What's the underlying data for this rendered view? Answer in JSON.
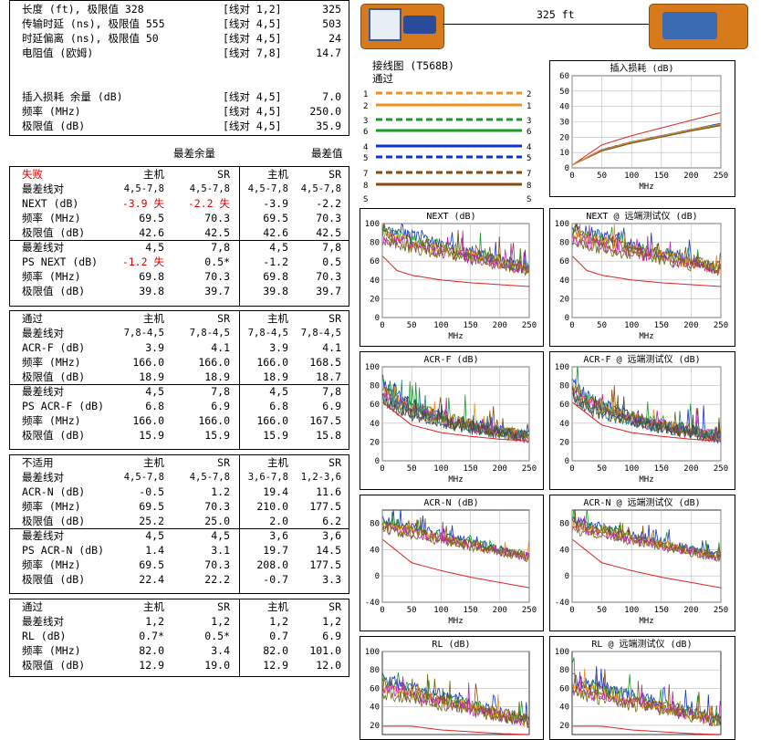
{
  "summary": {
    "rows": [
      {
        "label": "长度 (ft), 极限值 328",
        "pair": "[线对 1,2]",
        "value": "325"
      },
      {
        "label": "传输时延 (ns), 极限值 555",
        "pair": "[线对 4,5]",
        "value": "503"
      },
      {
        "label": "时延偏离 (ns), 极限值 50",
        "pair": "[线对 4,5]",
        "value": "24"
      },
      {
        "label": "电阻值 (欧姆)",
        "pair": "[线对 7,8]",
        "value": "14.7"
      },
      {
        "label": "插入损耗 余量 (dB)",
        "pair": "[线对 4,5]",
        "value": "7.0"
      },
      {
        "label": "频率 (MHz)",
        "pair": "[线对 4,5]",
        "value": "250.0"
      },
      {
        "label": "极限值 (dB)",
        "pair": "[线对 4,5]",
        "value": "35.9"
      }
    ]
  },
  "headers": {
    "worst_margin": "最差余量",
    "worst_value": "最差值"
  },
  "sections": [
    {
      "status": "失败",
      "status_color": "#e00000",
      "cols": [
        "主机",
        "SR",
        "主机",
        "SR"
      ],
      "groups": [
        {
          "rows": [
            {
              "label": "最差线对",
              "vals": [
                "4,5-7,8",
                "4,5-7,8",
                "4,5-7,8",
                "4,5-7,8"
              ],
              "small": true
            },
            {
              "label": "NEXT (dB)",
              "vals": [
                "-3.9 失",
                "-2.2 失",
                "-3.9",
                "-2.2"
              ],
              "red": [
                true,
                true,
                false,
                false
              ]
            },
            {
              "label": "频率 (MHz)",
              "vals": [
                "69.5",
                "70.3",
                "69.5",
                "70.3"
              ]
            },
            {
              "label": "极限值 (dB)",
              "vals": [
                "42.6",
                "42.5",
                "42.6",
                "42.5"
              ]
            }
          ]
        },
        {
          "rows": [
            {
              "label": "最差线对",
              "vals": [
                "4,5",
                "7,8",
                "4,5",
                "7,8"
              ]
            },
            {
              "label": "PS NEXT (dB)",
              "vals": [
                "-1.2 失",
                "0.5*",
                "-1.2",
                "0.5"
              ],
              "red": [
                true,
                false,
                false,
                false
              ]
            },
            {
              "label": "频率 (MHz)",
              "vals": [
                "69.8",
                "70.3",
                "69.8",
                "70.3"
              ]
            },
            {
              "label": "极限值 (dB)",
              "vals": [
                "39.8",
                "39.7",
                "39.8",
                "39.7"
              ]
            }
          ]
        }
      ]
    },
    {
      "status": "通过",
      "status_color": "#000000",
      "cols": [
        "主机",
        "SR",
        "主机",
        "SR"
      ],
      "groups": [
        {
          "rows": [
            {
              "label": "最差线对",
              "vals": [
                "7,8-4,5",
                "7,8-4,5",
                "7,8-4,5",
                "7,8-4,5"
              ],
              "small": true
            },
            {
              "label": "ACR-F (dB)",
              "vals": [
                "3.9",
                "4.1",
                "3.9",
                "4.1"
              ]
            },
            {
              "label": "频率 (MHz)",
              "vals": [
                "166.0",
                "166.0",
                "166.0",
                "168.5"
              ]
            },
            {
              "label": "极限值 (dB)",
              "vals": [
                "18.9",
                "18.9",
                "18.9",
                "18.7"
              ]
            }
          ]
        },
        {
          "rows": [
            {
              "label": "最差线对",
              "vals": [
                "4,5",
                "7,8",
                "4,5",
                "7,8"
              ]
            },
            {
              "label": "PS ACR-F (dB)",
              "vals": [
                "6.8",
                "6.9",
                "6.8",
                "6.9"
              ]
            },
            {
              "label": "频率 (MHz)",
              "vals": [
                "166.0",
                "166.0",
                "166.0",
                "167.5"
              ]
            },
            {
              "label": "极限值 (dB)",
              "vals": [
                "15.9",
                "15.9",
                "15.9",
                "15.8"
              ]
            }
          ]
        }
      ]
    },
    {
      "status": "不适用",
      "status_color": "#000000",
      "cols": [
        "主机",
        "SR",
        "主机",
        "SR"
      ],
      "groups": [
        {
          "rows": [
            {
              "label": "最差线对",
              "vals": [
                "4,5-7,8",
                "4,5-7,8",
                "3,6-7,8",
                "1,2-3,6"
              ],
              "small": true
            },
            {
              "label": "ACR-N (dB)",
              "vals": [
                "-0.5",
                "1.2",
                "19.4",
                "11.6"
              ]
            },
            {
              "label": "频率 (MHz)",
              "vals": [
                "69.5",
                "70.3",
                "210.0",
                "177.5"
              ]
            },
            {
              "label": "极限值 (dB)",
              "vals": [
                "25.2",
                "25.0",
                "2.0",
                "6.2"
              ]
            }
          ]
        },
        {
          "rows": [
            {
              "label": "最差线对",
              "vals": [
                "4,5",
                "4,5",
                "3,6",
                "3,6"
              ]
            },
            {
              "label": "PS ACR-N (dB)",
              "vals": [
                "1.4",
                "3.1",
                "19.7",
                "14.5"
              ]
            },
            {
              "label": "频率 (MHz)",
              "vals": [
                "69.5",
                "70.3",
                "208.0",
                "177.5"
              ]
            },
            {
              "label": "极限值 (dB)",
              "vals": [
                "22.4",
                "22.2",
                "-0.7",
                "3.3"
              ]
            }
          ]
        }
      ]
    },
    {
      "status": "通过",
      "status_color": "#000000",
      "cols": [
        "主机",
        "SR",
        "主机",
        "SR"
      ],
      "groups": [
        {
          "rows": [
            {
              "label": "最差线对",
              "vals": [
                "1,2",
                "1,2",
                "1,2",
                "1,2"
              ]
            },
            {
              "label": "RL (dB)",
              "vals": [
                "0.7*",
                "0.5*",
                "0.7",
                "6.9"
              ]
            },
            {
              "label": "频率 (MHz)",
              "vals": [
                "82.0",
                "3.4",
                "82.0",
                "101.0"
              ]
            },
            {
              "label": "极限值 (dB)",
              "vals": [
                "12.9",
                "19.0",
                "12.9",
                "12.0"
              ]
            }
          ]
        }
      ]
    }
  ],
  "cable": {
    "length_label": "325 ft"
  },
  "wiremap": {
    "title": "接线图 (T568B)",
    "status": "通过",
    "pairs": [
      {
        "left": "1",
        "right": "2",
        "color": "#f0901e",
        "dashed": true
      },
      {
        "left": "2",
        "right": "1",
        "color": "#f0901e",
        "dashed": false
      },
      {
        "left": "3",
        "right": "3",
        "color": "#1a9a2a",
        "dashed": true
      },
      {
        "left": "6",
        "right": "6",
        "color": "#1a9a2a",
        "dashed": false
      },
      {
        "left": "4",
        "right": "4",
        "color": "#1030d8",
        "dashed": false
      },
      {
        "left": "5",
        "right": "5",
        "color": "#1030d8",
        "dashed": true
      },
      {
        "left": "7",
        "right": "7",
        "color": "#8a4a10",
        "dashed": true
      },
      {
        "left": "8",
        "right": "8",
        "color": "#8a4a10",
        "dashed": false
      }
    ],
    "shield_left": "S",
    "shield_right": "S"
  },
  "charts": [
    {
      "id": "il",
      "title": "插入损耗 (dB)",
      "xlabel": "MHz",
      "yticks": [
        "60",
        "50",
        "40",
        "30",
        "20",
        "10",
        "0"
      ],
      "ylim": [
        0,
        60
      ],
      "xticks": [
        "0",
        "50",
        "100",
        "150",
        "200",
        "250"
      ],
      "xlim": [
        0,
        250
      ],
      "kind": "il"
    },
    {
      "id": "next",
      "title": "NEXT (dB)",
      "xlabel": "MHz",
      "yticks": [
        "100",
        "80",
        "60",
        "40",
        "20",
        "0"
      ],
      "ylim": [
        0,
        100
      ],
      "xticks": [
        "0",
        "50",
        "100",
        "150",
        "200",
        "250"
      ],
      "xlim": [
        0,
        250
      ],
      "kind": "next",
      "seed": 3
    },
    {
      "id": "next_r",
      "title": "NEXT @ 远端测试仪 (dB)",
      "xlabel": "MHz",
      "yticks": [
        "100",
        "80",
        "60",
        "40",
        "20",
        "0"
      ],
      "ylim": [
        0,
        100
      ],
      "xticks": [
        "0",
        "50",
        "100",
        "150",
        "200",
        "250"
      ],
      "xlim": [
        0,
        250
      ],
      "kind": "next",
      "seed": 7
    },
    {
      "id": "acrf",
      "title": "ACR-F (dB)",
      "xlabel": "MHz",
      "yticks": [
        "100",
        "80",
        "60",
        "40",
        "20",
        "0"
      ],
      "ylim": [
        0,
        100
      ],
      "xticks": [
        "0",
        "50",
        "100",
        "150",
        "200",
        "250"
      ],
      "xlim": [
        0,
        250
      ],
      "kind": "acrf",
      "seed": 11
    },
    {
      "id": "acrf_r",
      "title": "ACR-F @ 远端测试仪 (dB)",
      "xlabel": "MHz",
      "yticks": [
        "100",
        "80",
        "60",
        "40",
        "20",
        "0"
      ],
      "ylim": [
        0,
        100
      ],
      "xticks": [
        "0",
        "50",
        "100",
        "150",
        "200",
        "250"
      ],
      "xlim": [
        0,
        250
      ],
      "kind": "acrf",
      "seed": 13
    },
    {
      "id": "acrn",
      "title": "ACR-N (dB)",
      "xlabel": "MHz",
      "yticks": [
        "80",
        "40",
        "0",
        "-40"
      ],
      "ylim": [
        -40,
        100
      ],
      "xticks": [
        "0",
        "50",
        "100",
        "150",
        "200",
        "250"
      ],
      "xlim": [
        0,
        250
      ],
      "kind": "acrn",
      "seed": 17
    },
    {
      "id": "acrn_r",
      "title": "ACR-N @ 远端测试仪 (dB)",
      "xlabel": "MHz",
      "yticks": [
        "80",
        "40",
        "0",
        "-40"
      ],
      "ylim": [
        -40,
        100
      ],
      "xticks": [
        "0",
        "50",
        "100",
        "150",
        "200",
        "250"
      ],
      "xlim": [
        0,
        250
      ],
      "kind": "acrn",
      "seed": 19
    },
    {
      "id": "rl",
      "title": "RL (dB)",
      "xlabel": "MHz",
      "yticks": [
        "100",
        "80",
        "60",
        "40",
        "20"
      ],
      "ylim": [
        10,
        100
      ],
      "xticks": [],
      "xlim": [
        0,
        250
      ],
      "kind": "rl",
      "seed": 23
    },
    {
      "id": "rl_r",
      "title": "RL @ 远端测试仪 (dB)",
      "xlabel": "MHz",
      "yticks": [
        "100",
        "80",
        "60",
        "40",
        "20"
      ],
      "ylim": [
        10,
        100
      ],
      "xticks": [],
      "xlim": [
        0,
        250
      ],
      "kind": "rl",
      "seed": 29
    }
  ],
  "chart_data": [
    {
      "type": "line",
      "title": "插入损耗 (dB)",
      "xlabel": "MHz",
      "ylabel": "",
      "xlim": [
        0,
        250
      ],
      "ylim": [
        0,
        60
      ],
      "series": [
        {
          "name": "",
          "color": "#e02020",
          "x": [
            1,
            50,
            100,
            150,
            200,
            250
          ],
          "y": [
            2,
            15,
            21,
            26,
            31,
            36
          ]
        },
        {
          "name": "",
          "color": "#1030d8",
          "x": [
            1,
            50,
            100,
            150,
            200,
            250
          ],
          "y": [
            2,
            12,
            17,
            21,
            25,
            29
          ]
        },
        {
          "name": "",
          "color": "#1a9a2a",
          "x": [
            1,
            50,
            100,
            150,
            200,
            250
          ],
          "y": [
            2,
            11.5,
            16.5,
            20.5,
            24.5,
            28
          ]
        },
        {
          "name": "",
          "color": "#8a4a10",
          "x": [
            1,
            50,
            100,
            150,
            200,
            250
          ],
          "y": [
            2,
            11,
            16,
            20,
            24,
            27.5
          ]
        },
        {
          "name": "",
          "color": "#f0901e",
          "x": [
            1,
            50,
            100,
            150,
            200,
            250
          ],
          "y": [
            2,
            11.8,
            16.8,
            20.8,
            24.8,
            28.5
          ]
        }
      ]
    },
    {
      "type": "line",
      "title": "NEXT (dB)",
      "xlabel": "MHz",
      "xlim": [
        0,
        250
      ],
      "ylim": [
        0,
        100
      ],
      "limit": {
        "x": [
          1,
          25,
          50,
          100,
          150,
          200,
          250
        ],
        "y": [
          65,
          50,
          45,
          40,
          37,
          35,
          33
        ]
      },
      "traces_range": [
        45,
        95
      ]
    },
    {
      "type": "line",
      "title": "NEXT @ 远端测试仪 (dB)",
      "xlabel": "MHz",
      "xlim": [
        0,
        250
      ],
      "ylim": [
        0,
        100
      ],
      "limit": {
        "x": [
          1,
          25,
          50,
          100,
          150,
          200,
          250
        ],
        "y": [
          65,
          50,
          45,
          40,
          37,
          35,
          33
        ]
      },
      "traces_range": [
        45,
        95
      ]
    },
    {
      "type": "line",
      "title": "ACR-F (dB)",
      "xlabel": "MHz",
      "xlim": [
        0,
        250
      ],
      "ylim": [
        0,
        100
      ],
      "limit": {
        "x": [
          1,
          50,
          100,
          150,
          200,
          250
        ],
        "y": [
          62,
          38,
          30,
          26,
          23,
          21
        ]
      },
      "traces_range": [
        25,
        90
      ]
    },
    {
      "type": "line",
      "title": "ACR-F @ 远端测试仪 (dB)",
      "xlabel": "MHz",
      "xlim": [
        0,
        250
      ],
      "ylim": [
        0,
        100
      ],
      "limit": {
        "x": [
          1,
          50,
          100,
          150,
          200,
          250
        ],
        "y": [
          62,
          38,
          30,
          26,
          23,
          21
        ]
      },
      "traces_range": [
        25,
        90
      ]
    },
    {
      "type": "line",
      "title": "ACR-N (dB)",
      "xlabel": "MHz",
      "xlim": [
        0,
        250
      ],
      "ylim": [
        -40,
        100
      ],
      "limit": {
        "x": [
          1,
          50,
          100,
          150,
          200,
          250
        ],
        "y": [
          55,
          20,
          8,
          -2,
          -10,
          -18
        ]
      },
      "traces_range": [
        20,
        85
      ]
    },
    {
      "type": "line",
      "title": "ACR-N @ 远端测试仪 (dB)",
      "xlabel": "MHz",
      "xlim": [
        0,
        250
      ],
      "ylim": [
        -40,
        100
      ],
      "limit": {
        "x": [
          1,
          50,
          100,
          150,
          200,
          250
        ],
        "y": [
          55,
          20,
          8,
          -2,
          -10,
          -18
        ]
      },
      "traces_range": [
        20,
        85
      ]
    },
    {
      "type": "line",
      "title": "RL (dB)",
      "xlabel": "MHz",
      "xlim": [
        0,
        250
      ],
      "ylim": [
        10,
        100
      ],
      "limit": {
        "x": [
          1,
          50,
          100,
          150,
          200,
          250
        ],
        "y": [
          19,
          19,
          15,
          13,
          11,
          10
        ]
      },
      "traces_range": [
        18,
        70
      ]
    },
    {
      "type": "line",
      "title": "RL @ 远端测试仪 (dB)",
      "xlabel": "MHz",
      "xlim": [
        0,
        250
      ],
      "ylim": [
        10,
        100
      ],
      "limit": {
        "x": [
          1,
          50,
          100,
          150,
          200,
          250
        ],
        "y": [
          19,
          19,
          15,
          13,
          11,
          10
        ]
      },
      "traces_range": [
        18,
        70
      ]
    }
  ]
}
